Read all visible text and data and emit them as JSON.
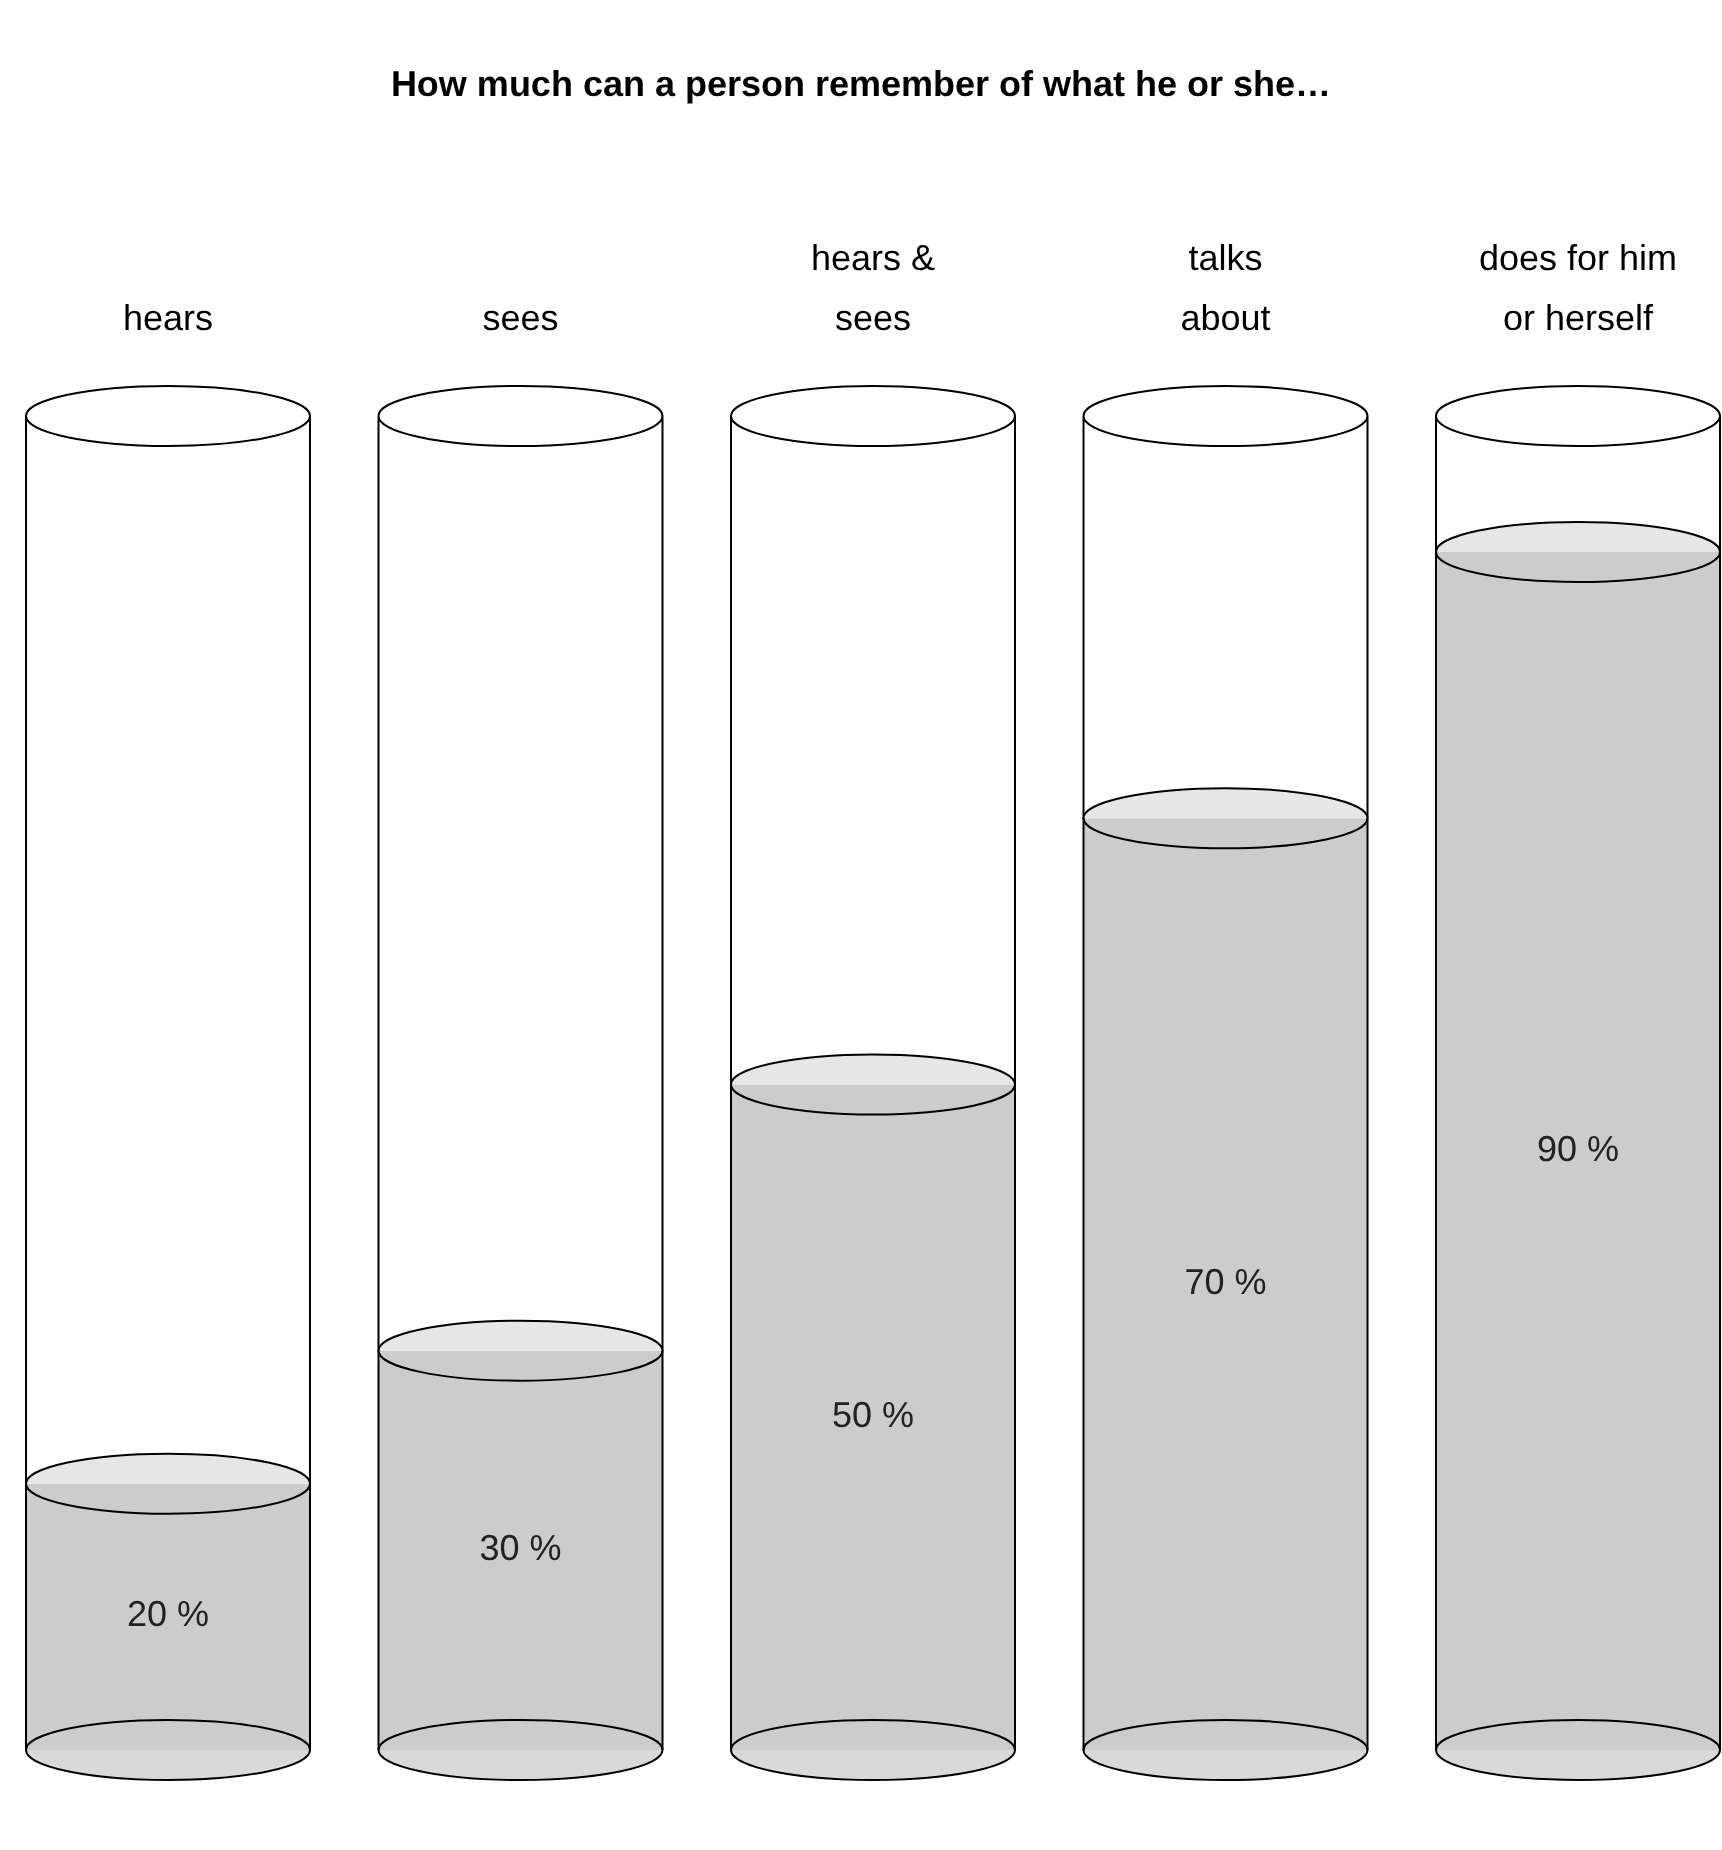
{
  "chart_data": {
    "type": "bar",
    "title": "How much can a person remember of what he or she…",
    "categories": [
      "hears",
      "sees",
      "hears & sees",
      "talks about",
      "does for him or herself"
    ],
    "values": [
      20,
      30,
      50,
      70,
      90
    ],
    "value_labels": [
      "20 %",
      "30 %",
      "50 %",
      "70 %",
      "90 %"
    ],
    "color": "#cccccc",
    "tick_labels": "x"
  }
}
